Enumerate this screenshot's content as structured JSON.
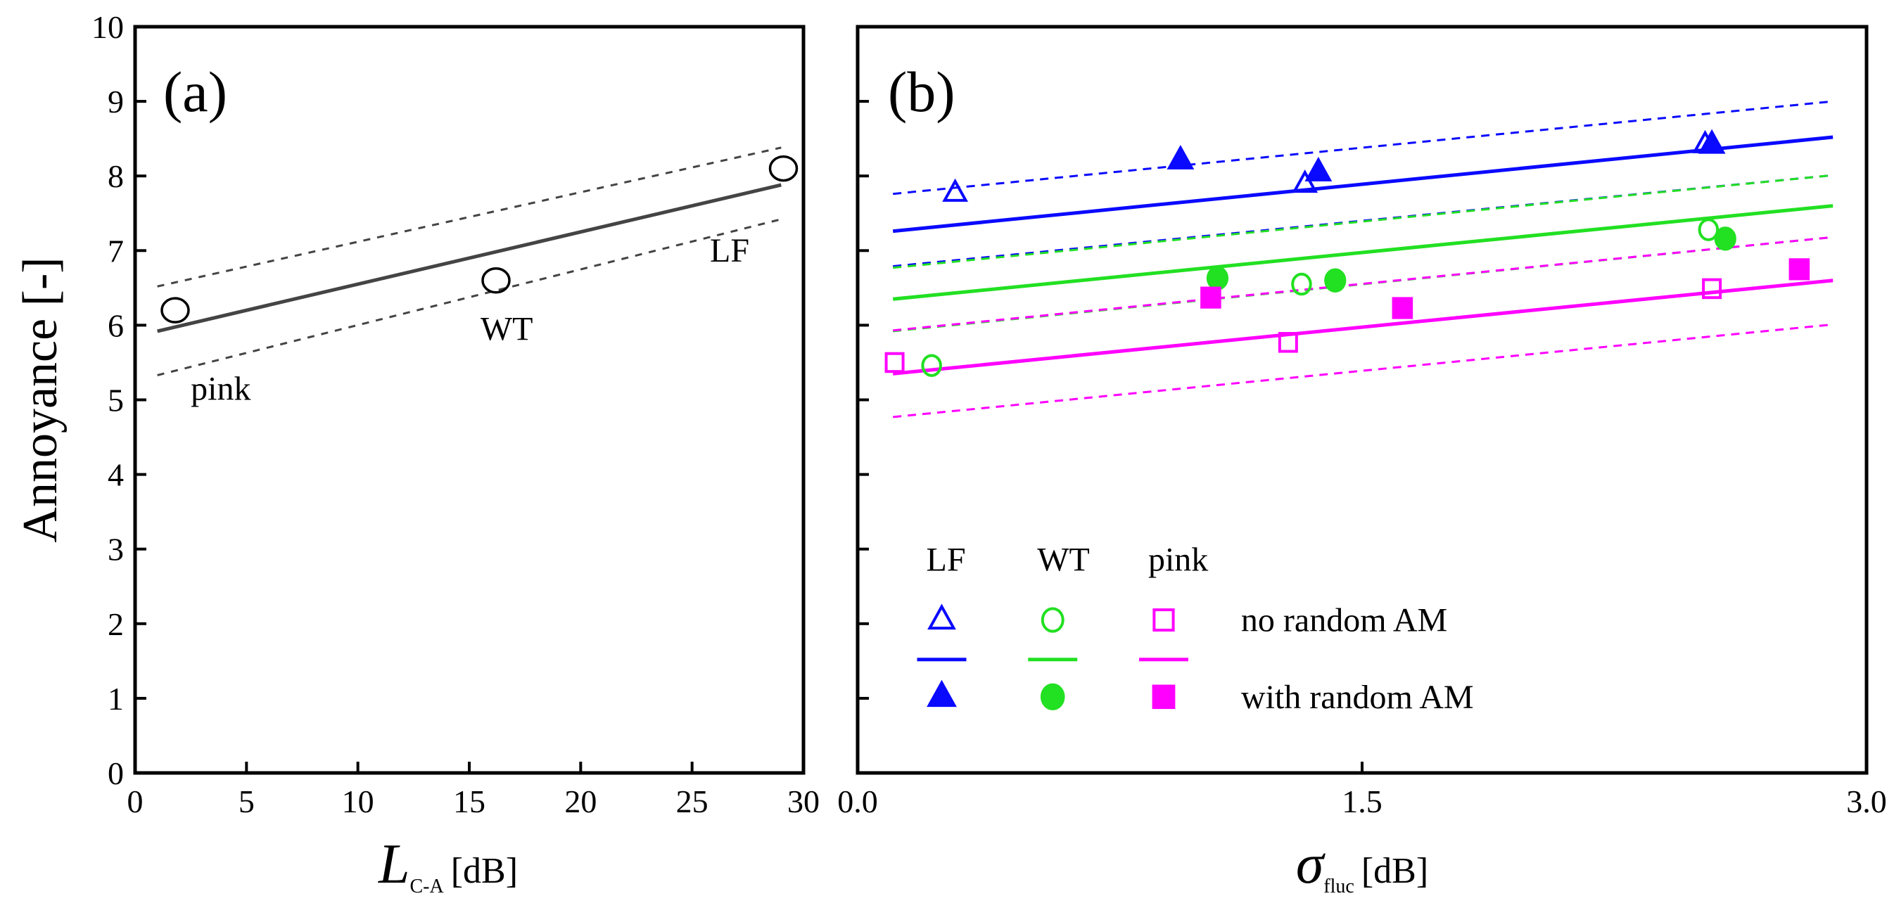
{
  "chart_data": [
    {
      "type": "scatter",
      "panel_label": "(a)",
      "ylabel": "Annoyance [-]",
      "xlabel_main": "L",
      "xlabel_sub": "C-A",
      "xlabel_unit": "[dB]",
      "xlim": [
        0,
        30
      ],
      "ylim": [
        0,
        10
      ],
      "xticks": [
        "0",
        "5",
        "10",
        "15",
        "20",
        "25",
        "30"
      ],
      "yticks": [
        "0",
        "1",
        "2",
        "3",
        "4",
        "5",
        "6",
        "7",
        "8",
        "9",
        "10"
      ],
      "points": [
        {
          "label": "pink",
          "x": 1.8,
          "y": 6.2
        },
        {
          "label": "WT",
          "x": 16.2,
          "y": 6.6
        },
        {
          "label": "LF",
          "x": 29.1,
          "y": 8.1
        }
      ],
      "point_labels": [
        {
          "text": "pink",
          "x": 2.5,
          "y": 5.0
        },
        {
          "text": "WT",
          "x": 15.5,
          "y": 5.8
        },
        {
          "text": "LF",
          "x": 25.8,
          "y": 6.85
        }
      ],
      "fit": {
        "x": [
          1,
          29
        ],
        "y": [
          5.92,
          7.88
        ]
      },
      "ci_upper": {
        "x": [
          1,
          29
        ],
        "y": [
          6.52,
          8.38
        ]
      },
      "ci_lower": {
        "x": [
          1,
          29
        ],
        "y": [
          5.33,
          7.42
        ]
      },
      "color": "#444444"
    },
    {
      "type": "scatter",
      "panel_label": "(b)",
      "xlabel_main": "σ",
      "xlabel_sub": "fluc",
      "xlabel_unit": "[dB]",
      "xlim": [
        0,
        3.0
      ],
      "ylim": [
        0,
        10
      ],
      "xticks": [
        {
          "v": 0,
          "t": "0.0"
        },
        {
          "v": 1.5,
          "t": "1.5"
        },
        {
          "v": 3.0,
          "t": "3.0"
        }
      ],
      "series": [
        {
          "name": "LF",
          "color": "#0a0aff",
          "marker": "triangle",
          "no_random_am": [
            [
              0.29,
              7.77
            ],
            [
              1.33,
              7.89
            ],
            [
              2.52,
              8.42
            ]
          ],
          "with_random_am": [
            [
              0.96,
              8.21
            ],
            [
              1.37,
              8.05
            ],
            [
              2.54,
              8.42
            ]
          ],
          "fit": [
            [
              0.105,
              7.26
            ],
            [
              2.9,
              8.52
            ]
          ],
          "ci_upper": [
            [
              0.105,
              7.76
            ],
            [
              2.9,
              9.0
            ]
          ],
          "ci_lower": [
            [
              0.105,
              6.79
            ],
            [
              2.9,
              8.01
            ]
          ]
        },
        {
          "name": "WT",
          "color": "#22e022",
          "marker": "circle",
          "no_random_am": [
            [
              0.22,
              5.46
            ],
            [
              1.32,
              6.55
            ],
            [
              2.53,
              7.28
            ]
          ],
          "with_random_am": [
            [
              1.07,
              6.63
            ],
            [
              1.42,
              6.6
            ],
            [
              2.58,
              7.16
            ]
          ],
          "fit": [
            [
              0.105,
              6.35
            ],
            [
              2.9,
              7.6
            ]
          ],
          "ci_upper": [
            [
              0.105,
              6.77
            ],
            [
              2.9,
              8.01
            ]
          ],
          "ci_lower": [
            [
              0.105,
              5.92
            ],
            [
              2.9,
              7.18
            ]
          ]
        },
        {
          "name": "pink",
          "color": "#ff00ff",
          "marker": "square",
          "no_random_am": [
            [
              0.11,
              5.5
            ],
            [
              1.28,
              5.77
            ],
            [
              2.54,
              6.49
            ]
          ],
          "with_random_am": [
            [
              1.05,
              6.37
            ],
            [
              1.62,
              6.23
            ],
            [
              2.8,
              6.75
            ]
          ],
          "fit": [
            [
              0.105,
              5.35
            ],
            [
              2.9,
              6.6
            ]
          ],
          "ci_upper": [
            [
              0.105,
              5.93
            ],
            [
              2.9,
              7.18
            ]
          ],
          "ci_lower": [
            [
              0.105,
              4.77
            ],
            [
              2.9,
              6.01
            ]
          ]
        }
      ],
      "legend": {
        "placement": "bottom-left",
        "headers": [
          "LF",
          "WT",
          "pink"
        ],
        "rows": [
          "no random AM",
          "with random AM"
        ]
      }
    }
  ]
}
